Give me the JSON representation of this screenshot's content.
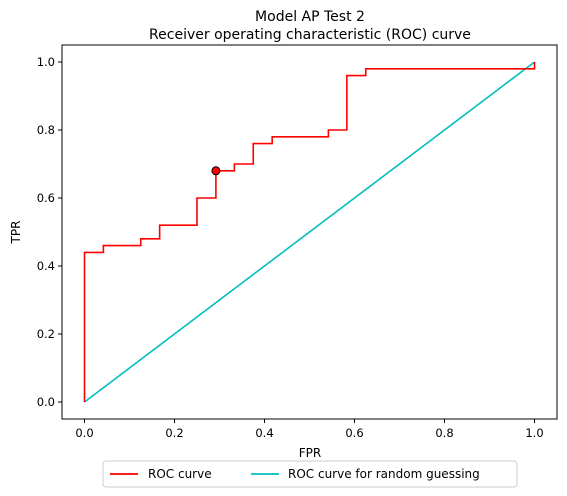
{
  "chart_data": {
    "type": "line",
    "title": "Model AP Test 2",
    "subtitle": "Receiver operating characteristic (ROC) curve",
    "xlabel": "FPR",
    "ylabel": "TPR",
    "xlim": [
      -0.05,
      1.05
    ],
    "ylim": [
      -0.05,
      1.05
    ],
    "xticks": [
      "0.0",
      "0.2",
      "0.4",
      "0.6",
      "0.8",
      "1.0"
    ],
    "yticks": [
      "0.0",
      "0.2",
      "0.4",
      "0.6",
      "0.8",
      "1.0"
    ],
    "grid": false,
    "legend_position": "bottom-center-outside",
    "series": [
      {
        "name": "ROC curve",
        "color": "#ff0000",
        "step": true,
        "points": [
          [
            0.0,
            0.0
          ],
          [
            0.0,
            0.44
          ],
          [
            0.042,
            0.44
          ],
          [
            0.042,
            0.46
          ],
          [
            0.125,
            0.46
          ],
          [
            0.125,
            0.48
          ],
          [
            0.167,
            0.48
          ],
          [
            0.167,
            0.52
          ],
          [
            0.25,
            0.52
          ],
          [
            0.25,
            0.6
          ],
          [
            0.292,
            0.6
          ],
          [
            0.292,
            0.68
          ],
          [
            0.333,
            0.68
          ],
          [
            0.333,
            0.7
          ],
          [
            0.375,
            0.7
          ],
          [
            0.375,
            0.76
          ],
          [
            0.417,
            0.76
          ],
          [
            0.417,
            0.78
          ],
          [
            0.542,
            0.78
          ],
          [
            0.542,
            0.8
          ],
          [
            0.583,
            0.8
          ],
          [
            0.583,
            0.96
          ],
          [
            0.625,
            0.96
          ],
          [
            0.625,
            0.98
          ],
          [
            1.0,
            0.98
          ],
          [
            1.0,
            1.0
          ]
        ]
      },
      {
        "name": "ROC curve for random guessing",
        "color": "#00bfbf",
        "points": [
          [
            0.0,
            0.0
          ],
          [
            1.0,
            1.0
          ]
        ]
      }
    ],
    "marker": {
      "x": 0.292,
      "y": 0.68,
      "color": "#ff0000"
    }
  }
}
